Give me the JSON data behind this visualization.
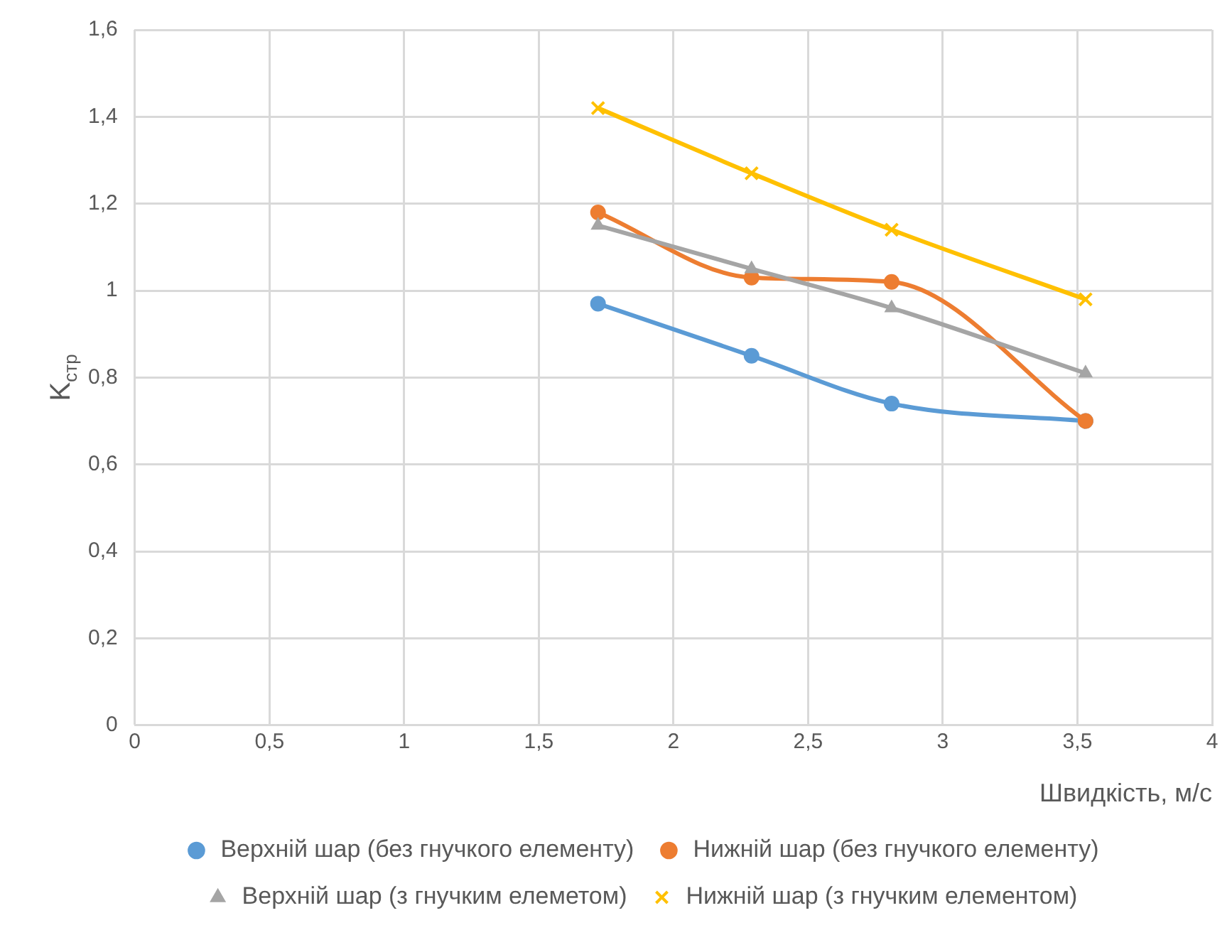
{
  "chart_data": {
    "type": "line",
    "xlabel": "Швидкість, м/с",
    "ylabel": "K$_{стр}$",
    "x": [
      1.72,
      2.29,
      2.81,
      3.53
    ],
    "series": [
      {
        "name": "Верхній шар (без гнучкого елементу)",
        "color": "#5b9bd5",
        "marker": "circle",
        "values": [
          0.97,
          0.85,
          0.74,
          0.7
        ]
      },
      {
        "name": "Нижній шар (без гнучкого елементу)",
        "color": "#ed7d31",
        "marker": "circle",
        "values": [
          1.18,
          1.03,
          1.02,
          0.7
        ]
      },
      {
        "name": "Верхній шар (з гнучким елеметом)",
        "color": "#a5a5a5",
        "marker": "triangle",
        "values": [
          1.15,
          1.05,
          0.96,
          0.81
        ]
      },
      {
        "name": "Нижній шар (з гнучким елементом)",
        "color": "#ffc000",
        "marker": "cross",
        "values": [
          1.42,
          1.27,
          1.14,
          0.98
        ]
      }
    ],
    "xlim": [
      0,
      4
    ],
    "xticks": [
      0,
      {
        "value": 0.5,
        "label": "0,5"
      },
      1,
      {
        "value": 1.5,
        "label": "1,5"
      },
      2,
      {
        "value": 2.5,
        "label": "2,5"
      },
      3,
      {
        "value": 3.5,
        "label": "3,5"
      },
      4
    ],
    "ylim": [
      0,
      1.6
    ],
    "yticks": [
      0,
      {
        "value": 0.2,
        "label": "0,2"
      },
      {
        "value": 0.4,
        "label": "0,4"
      },
      {
        "value": 0.6,
        "label": "0,6"
      },
      {
        "value": 0.8,
        "label": "0,8"
      },
      1,
      {
        "value": 1.2,
        "label": "1,2"
      },
      {
        "value": 1.4,
        "label": "1,4"
      },
      {
        "value": 1.6,
        "label": "1,6"
      }
    ],
    "grid": true,
    "legend": "bottom",
    "line_style": "solid"
  }
}
